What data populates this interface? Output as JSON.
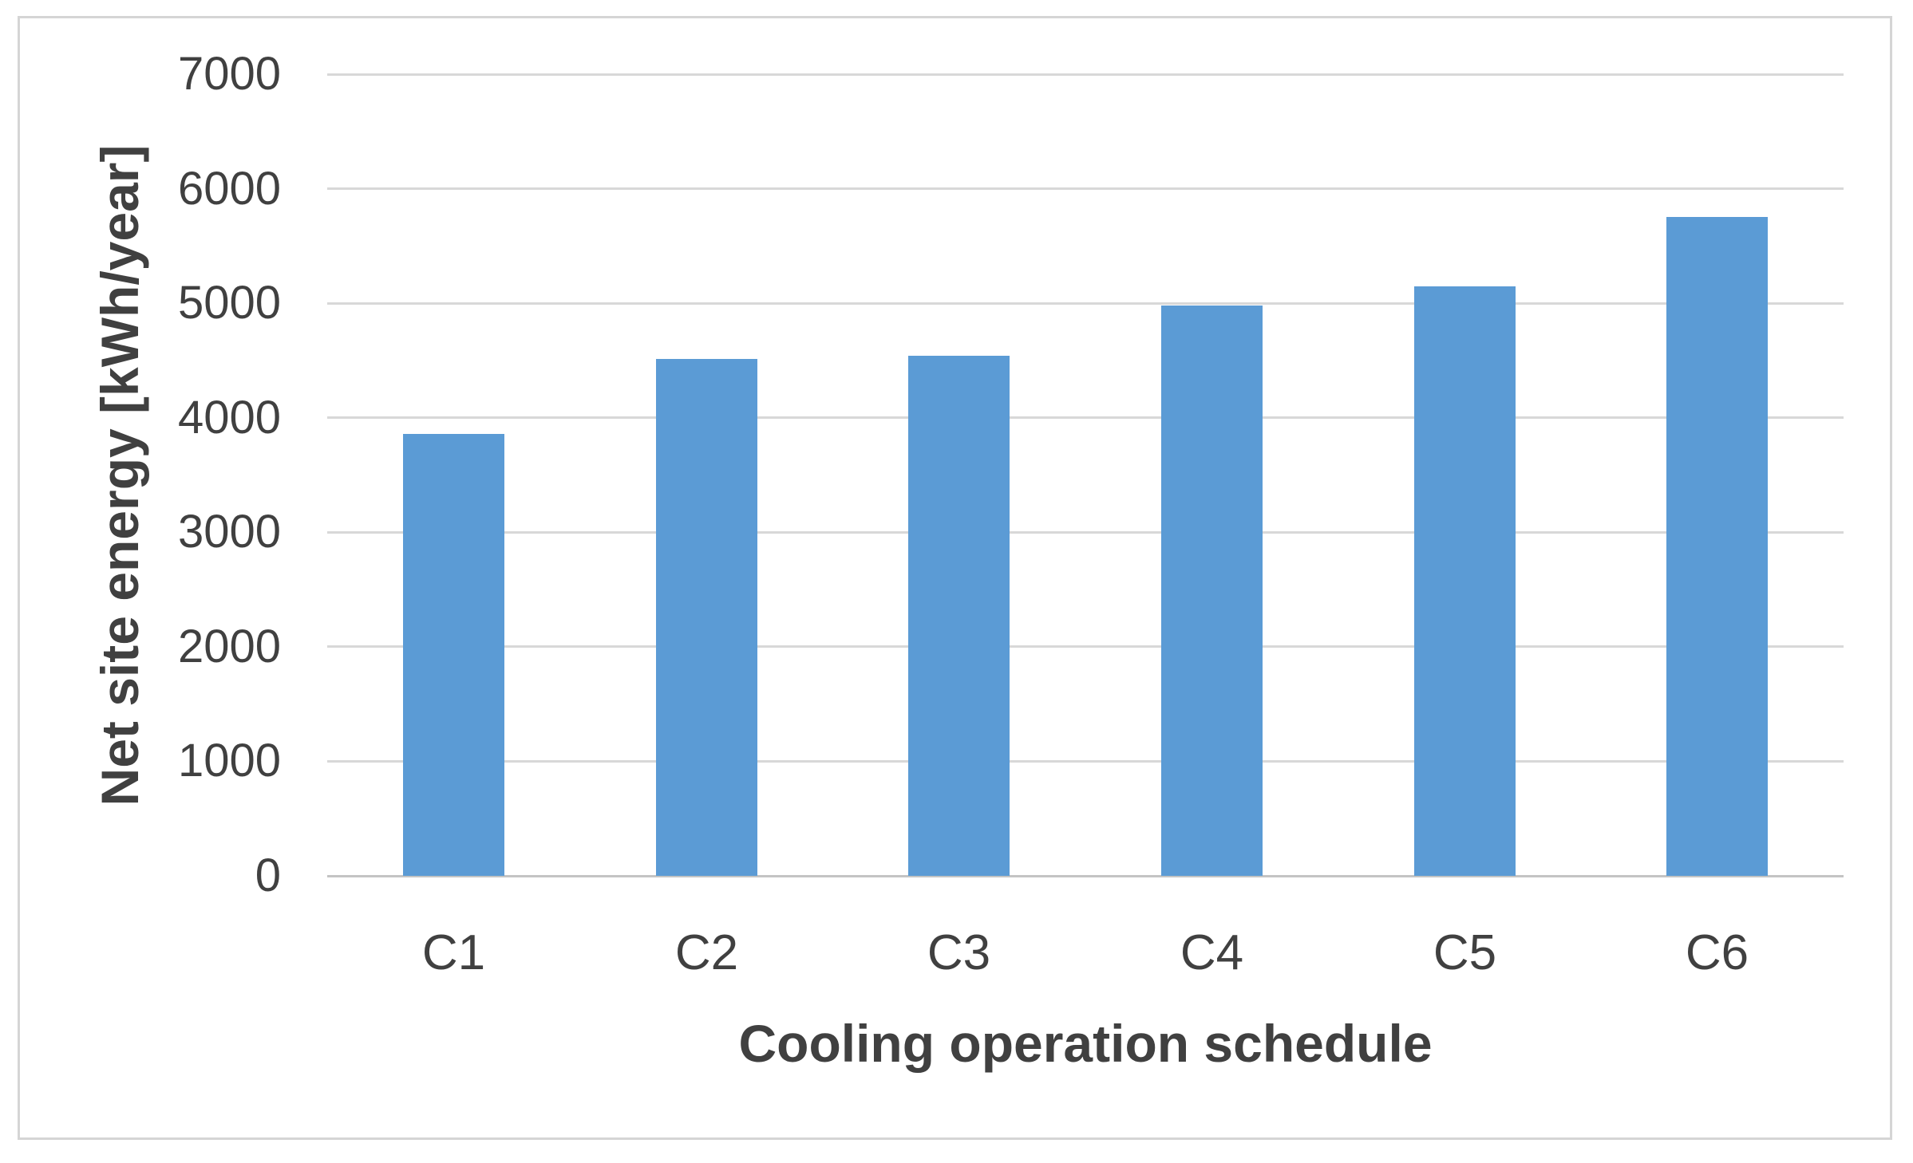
{
  "chart_data": {
    "type": "bar",
    "categories": [
      "C1",
      "C2",
      "C3",
      "C4",
      "C5",
      "C6"
    ],
    "values": [
      3860,
      4510,
      4540,
      4980,
      5150,
      5750
    ],
    "title": "",
    "xlabel": "Cooling operation schedule",
    "ylabel": "Net site energy [kWh/year]",
    "ylim": [
      0,
      7000
    ],
    "yticks": [
      0,
      1000,
      2000,
      3000,
      4000,
      5000,
      6000,
      7000
    ],
    "grid": "horizontal-only",
    "legend": "none",
    "bar_color": "#5B9BD5"
  },
  "colors": {
    "bar": "#5B9BD5",
    "gridline": "#D8D8D8",
    "axis_line": "#C4C4C4",
    "text": "#404040",
    "figure_border": "#D5D5D5",
    "background": "#FFFFFF"
  }
}
